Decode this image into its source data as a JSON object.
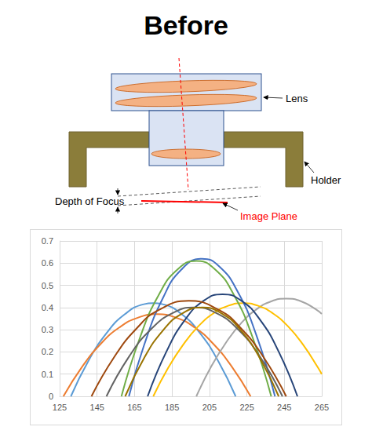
{
  "title": "Before",
  "diagram": {
    "lens": "Lens",
    "holder": "Holder",
    "depth_of_focus": "Depth of Focus",
    "image_plane": "Image Plane"
  },
  "chart_data": {
    "type": "line",
    "xlim": [
      125,
      265
    ],
    "xticks": [
      125,
      145,
      165,
      185,
      205,
      225,
      245,
      265
    ],
    "ylim": [
      0,
      0.7
    ],
    "yticks": [
      0,
      0.1,
      0.2,
      0.3,
      0.4,
      0.5,
      0.6,
      0.7
    ],
    "grid": true,
    "series": [
      {
        "color": "#5B9BD5",
        "x": [
          131,
          140,
          150,
          160,
          170,
          175,
          180,
          190,
          200,
          210,
          219
        ],
        "values": [
          0,
          0.154,
          0.284,
          0.371,
          0.415,
          0.42,
          0.415,
          0.371,
          0.284,
          0.154,
          0
        ]
      },
      {
        "color": "#ED7D31",
        "x": [
          127,
          137,
          147,
          157,
          167,
          177,
          187,
          197,
          207,
          217,
          227
        ],
        "values": [
          0,
          0.133,
          0.237,
          0.311,
          0.355,
          0.37,
          0.355,
          0.311,
          0.237,
          0.133,
          0
        ]
      },
      {
        "color": "#A5A5A5",
        "x": [
          198,
          206,
          214,
          222,
          230,
          238,
          246,
          254,
          262,
          265
        ],
        "values": [
          0,
          0.135,
          0.244,
          0.33,
          0.391,
          0.428,
          0.44,
          0.428,
          0.391,
          0.371
        ]
      },
      {
        "color": "#FFC000",
        "x": [
          175,
          183,
          191,
          199,
          207,
          215,
          223,
          231,
          239,
          247,
          255,
          263,
          265
        ],
        "values": [
          0,
          0.129,
          0.233,
          0.315,
          0.373,
          0.408,
          0.42,
          0.408,
          0.373,
          0.315,
          0.233,
          0.129,
          0.1
        ]
      },
      {
        "color": "#4472C4",
        "x": [
          162,
          170,
          180,
          190,
          201,
          210,
          220,
          230,
          240
        ],
        "values": [
          0,
          0.228,
          0.44,
          0.571,
          0.62,
          0.587,
          0.473,
          0.277,
          0
        ]
      },
      {
        "color": "#70AD47",
        "x": [
          158,
          168,
          178,
          188,
          198,
          208,
          218,
          228,
          238
        ],
        "values": [
          0,
          0.267,
          0.458,
          0.572,
          0.61,
          0.572,
          0.458,
          0.267,
          0
        ]
      },
      {
        "color": "#264478",
        "x": [
          172,
          182,
          192,
          202,
          212,
          222,
          232,
          242,
          252
        ],
        "values": [
          0,
          0.201,
          0.345,
          0.431,
          0.46,
          0.431,
          0.345,
          0.201,
          0
        ]
      },
      {
        "color": "#9E480E",
        "x": [
          142,
          154,
          166,
          178,
          194,
          210,
          222,
          234,
          246
        ],
        "values": [
          0,
          0.175,
          0.305,
          0.389,
          0.43,
          0.389,
          0.305,
          0.175,
          0
        ]
      },
      {
        "color": "#636363",
        "x": [
          150,
          162,
          174,
          186,
          197,
          208,
          220,
          232,
          244
        ],
        "values": [
          0,
          0.178,
          0.304,
          0.378,
          0.4,
          0.378,
          0.304,
          0.178,
          0
        ]
      },
      {
        "color": "#997300",
        "x": [
          160,
          170,
          180,
          190,
          201,
          212,
          222,
          232,
          242
        ],
        "values": [
          0,
          0.171,
          0.295,
          0.371,
          0.4,
          0.371,
          0.295,
          0.171,
          0
        ]
      }
    ]
  }
}
